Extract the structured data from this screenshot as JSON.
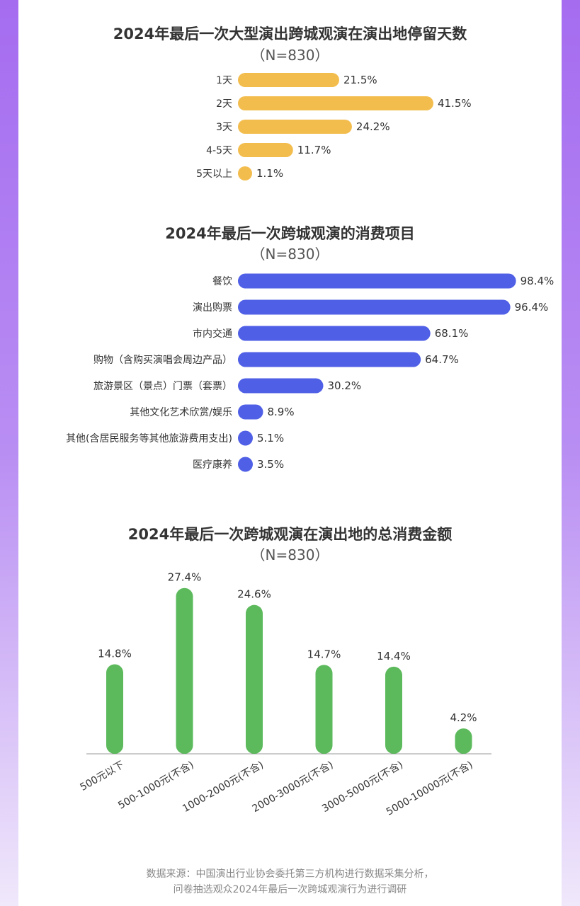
{
  "chart_data": [
    {
      "type": "bar",
      "orientation": "horizontal",
      "title": "2024年最后一次大型演出跨城观演在演出地停留天数",
      "subtitle": "（N=830）",
      "categories": [
        "1天",
        "2天",
        "3天",
        "4-5天",
        "5天以上"
      ],
      "values": [
        21.5,
        41.5,
        24.2,
        11.7,
        1.1
      ],
      "value_labels": [
        "21.5%",
        "41.5%",
        "24.2%",
        "11.7%",
        "1.1%"
      ],
      "color": "#f3bd4e"
    },
    {
      "type": "bar",
      "orientation": "horizontal",
      "title": "2024年最后一次跨城观演的消费项目",
      "subtitle": "（N=830）",
      "categories": [
        "餐饮",
        "演出购票",
        "市内交通",
        "购物（含购买演唱会周边产品）",
        "旅游景区（景点）门票（套票）",
        "其他文化艺术欣赏/娱乐",
        "其他(含居民服务等其他旅游费用支出)",
        "医疗康养"
      ],
      "values": [
        98.4,
        96.4,
        68.1,
        64.7,
        30.2,
        8.9,
        5.1,
        3.5
      ],
      "value_labels": [
        "98.4%",
        "96.4%",
        "68.1%",
        "64.7%",
        "30.2%",
        "8.9%",
        "5.1%",
        "3.5%"
      ],
      "color": "#4f5fe6"
    },
    {
      "type": "bar",
      "orientation": "vertical",
      "title": "2024年最后一次跨城观演在演出地的总消费金额",
      "subtitle": "（N=830）",
      "categories": [
        "500元以下",
        "500-1000元(不含)",
        "1000-2000元(不含)",
        "2000-3000元(不含)",
        "3000-5000元(不含)",
        "5000-10000元(不含)"
      ],
      "values": [
        14.8,
        27.4,
        24.6,
        14.7,
        14.4,
        4.2
      ],
      "value_labels": [
        "14.8%",
        "27.4%",
        "24.6%",
        "14.7%",
        "14.4%",
        "4.2%"
      ],
      "color": "#5cba5c"
    }
  ],
  "footer": {
    "line1": "数据来源：中国演出行业协会委托第三方机构进行数据采集分析，",
    "line2": "问卷抽选观众2024年最后一次跨城观演行为进行调研"
  }
}
